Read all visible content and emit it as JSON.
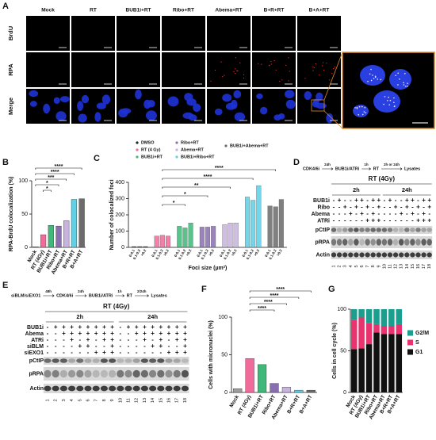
{
  "panel_a": {
    "label": "A",
    "columns": [
      "Mock",
      "RT",
      "BUB1i+RT",
      "Ribo+RT",
      "Abema+RT",
      "B+R+RT",
      "B+A+RT"
    ],
    "rows": [
      "BrdU",
      "RPA",
      "Merge"
    ],
    "row_colors": [
      "#1a9a3c",
      "#e0262c",
      "#f0932a"
    ]
  },
  "panel_d": {
    "label": "D",
    "scheme": [
      "CDK4/6i",
      "24h",
      "BUB1i/ATRi",
      "1h",
      "RT",
      "2h or 24h",
      "Lysates"
    ],
    "treatment": "RT (4Gy)",
    "timepoints": [
      "2h",
      "24h"
    ],
    "conditions": [
      {
        "name": "BUB1i",
        "signs": [
          "-",
          "+",
          "-",
          "-",
          "+",
          "+",
          "-",
          "+",
          "+",
          "-",
          "+",
          "-",
          "-",
          "+",
          "+",
          "-",
          "+",
          "+"
        ]
      },
      {
        "name": "Ribo",
        "signs": [
          "-",
          "-",
          "+",
          "-",
          "+",
          "-",
          "+",
          "-",
          "+",
          "-",
          "-",
          "+",
          "-",
          "+",
          "-",
          "+",
          "-",
          "+"
        ]
      },
      {
        "name": "Abema",
        "signs": [
          "-",
          "-",
          "-",
          "+",
          "-",
          "+",
          "-",
          "+",
          "-",
          "-",
          "-",
          "-",
          "+",
          "-",
          "+",
          "-",
          "+",
          "-"
        ]
      },
      {
        "name": "ATRi",
        "signs": [
          "-",
          "-",
          "-",
          "-",
          "-",
          "-",
          "+",
          "+",
          "+",
          "-",
          "-",
          "-",
          "-",
          "-",
          "-",
          "+",
          "+",
          "+"
        ]
      }
    ],
    "proteins": [
      "pCtIP",
      "pRPA",
      "Actin"
    ],
    "lanes": [
      1,
      2,
      3,
      4,
      5,
      6,
      7,
      8,
      9,
      10,
      11,
      12,
      13,
      14,
      15,
      16,
      17,
      18
    ]
  },
  "panel_e": {
    "label": "E",
    "scheme": [
      "siBLM/siEXO1",
      "48h",
      "CDK4/6i",
      "24h",
      "BUB1i/ATRi",
      "1h",
      "RT",
      "2/24h",
      "Lysates"
    ],
    "treatment": "RT (4Gy)",
    "timepoints": [
      "2h",
      "24h"
    ],
    "conditions": [
      {
        "name": "BUB1i",
        "signs": [
          "-",
          "+",
          "+",
          "+",
          "+",
          "+",
          "+",
          "+",
          "+",
          "-",
          "+",
          "+",
          "+",
          "+",
          "+",
          "+",
          "+",
          "+"
        ]
      },
      {
        "name": "Abema",
        "signs": [
          "-",
          "-",
          "+",
          "+",
          "+",
          "+",
          "+",
          "+",
          "+",
          "-",
          "-",
          "+",
          "+",
          "+",
          "+",
          "+",
          "+",
          "+"
        ]
      },
      {
        "name": "ATRi",
        "signs": [
          "-",
          "-",
          "-",
          "+",
          "-",
          "+",
          "-",
          "+",
          "+",
          "-",
          "-",
          "-",
          "+",
          "-",
          "+",
          "-",
          "+",
          "+"
        ]
      },
      {
        "name": "siBLM",
        "signs": [
          "-",
          "-",
          "-",
          "-",
          "+",
          "+",
          "-",
          "-",
          "+",
          "-",
          "-",
          "-",
          "-",
          "+",
          "+",
          "-",
          "-",
          "+"
        ]
      },
      {
        "name": "siEXO1",
        "signs": [
          "-",
          "-",
          "-",
          "-",
          "-",
          "-",
          "+",
          "+",
          "+",
          "-",
          "-",
          "-",
          "-",
          "-",
          "-",
          "+",
          "+",
          "+"
        ]
      }
    ],
    "proteins": [
      "pCtIP",
      "pRPA",
      "Actin"
    ],
    "lanes": [
      1,
      2,
      3,
      4,
      5,
      6,
      7,
      8,
      9,
      10,
      11,
      12,
      13,
      14,
      15,
      16,
      17,
      18
    ]
  },
  "chart_data": [
    {
      "type": "bar",
      "label": "B",
      "ylabel": "RPA-BrdU colocalization (%)",
      "label_color": "#d6265b",
      "categories": [
        "Mock",
        "RT (4Gy)",
        "BUB1i+RT",
        "Ribo+RT",
        "Abema+RT",
        "B+R+RT",
        "B+A+RT"
      ],
      "values": [
        1,
        19,
        33,
        32,
        40,
        72,
        73
      ],
      "colors": [
        "#9e9e9e",
        "#f06a9a",
        "#3fb87a",
        "#8a6fb0",
        "#c7b3dd",
        "#5fd0e6",
        "#6b6b6b"
      ],
      "ylim": [
        0,
        100
      ],
      "yticks": [
        0,
        50,
        100
      ],
      "significance": [
        "****",
        "****",
        "***",
        "*",
        "*"
      ]
    },
    {
      "type": "grouped_bar",
      "label": "C",
      "ylabel": "Number of colocalized foci",
      "xlabel": "Foci size (µm²)",
      "label_color": "#d6265b",
      "categories": [
        "0-0.1",
        "0.1-0.2",
        ">0.2"
      ],
      "series": [
        {
          "name": "DMSO",
          "color": "#222222",
          "values": [
            5,
            5,
            5
          ]
        },
        {
          "name": "RT (4 Gy)",
          "color": "#f06a9a",
          "values": [
            70,
            75,
            70
          ]
        },
        {
          "name": "BUB1i+RT",
          "color": "#3fb87a",
          "values": [
            130,
            120,
            150
          ]
        },
        {
          "name": "Ribo+RT",
          "color": "#8a6fb0",
          "values": [
            125,
            125,
            130
          ]
        },
        {
          "name": "Abema+RT",
          "color": "#c7b3dd",
          "values": [
            140,
            150,
            150
          ]
        },
        {
          "name": "BUB1i+Ribo+RT",
          "color": "#5fd0e6",
          "values": [
            310,
            290,
            380
          ]
        },
        {
          "name": "BUB1i+Abema+RT",
          "color": "#6b6b6b",
          "values": [
            255,
            250,
            295
          ]
        }
      ],
      "ylim": [
        0,
        400
      ],
      "yticks": [
        0,
        100,
        200,
        300,
        400
      ],
      "significance": [
        "****",
        "****",
        "**",
        "*",
        "*"
      ]
    },
    {
      "type": "bar",
      "label": "F",
      "ylabel": "Cells with micronuclei (%)",
      "label_color": "#d6265b",
      "categories": [
        "Mock",
        "RT (4Gy)",
        "BUB1i+RT",
        "Ribo+RT",
        "Abema+RT",
        "B+R+RT",
        "B+A+RT"
      ],
      "values": [
        5,
        45,
        37,
        12,
        7,
        3,
        3
      ],
      "colors": [
        "#9e9e9e",
        "#f06a9a",
        "#3fb87a",
        "#8a6fb0",
        "#c7b3dd",
        "#5fd0e6",
        "#6b6b6b"
      ],
      "ylim": [
        0,
        100
      ],
      "yticks": [
        0,
        50,
        100
      ],
      "significance": [
        "****",
        "****",
        "****",
        "****"
      ]
    },
    {
      "type": "stacked_bar",
      "label": "G",
      "ylabel": "Cells in cell cycle (%)",
      "label_color": "#d6265b",
      "categories": [
        "Mock",
        "RT (4Gy)",
        "BUB1i+RT",
        "Ribo+RT",
        "Abema+RT",
        "B+R+RT",
        "B+A+RT"
      ],
      "series": [
        {
          "name": "G1",
          "color": "#111111",
          "values": [
            52,
            53,
            58,
            72,
            70,
            70,
            70
          ]
        },
        {
          "name": "S",
          "color": "#e8336e",
          "values": [
            35,
            37,
            25,
            10,
            10,
            10,
            12
          ]
        },
        {
          "name": "G2/M",
          "color": "#1a9e8f",
          "values": [
            13,
            10,
            17,
            18,
            20,
            20,
            18
          ]
        }
      ],
      "ylim": [
        0,
        100
      ],
      "yticks": [
        0,
        50,
        100
      ]
    }
  ]
}
